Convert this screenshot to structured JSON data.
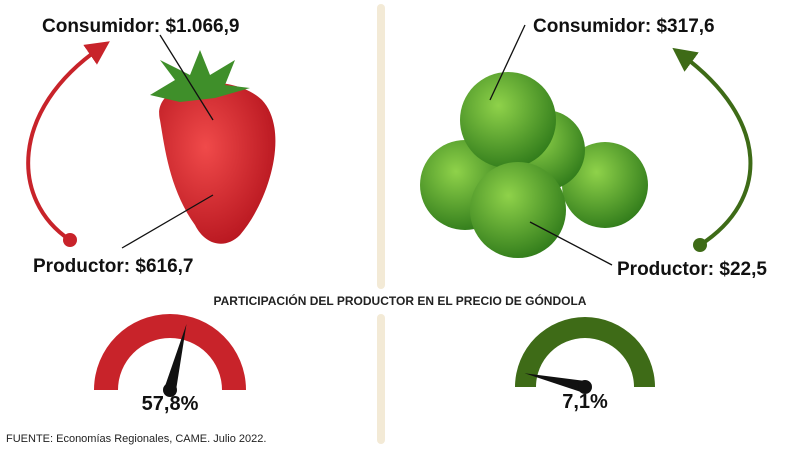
{
  "left": {
    "consumer": "Consumidor: $1.066,9",
    "producer": "Productor: $616,7"
  },
  "right": {
    "consumer": "Consumidor: $317,6",
    "producer": "Productor: $22,5"
  },
  "section_title": "PARTICIPACIÓN DEL PRODUCTOR EN EL PRECIO DE GÓNDOLA",
  "gauges": [
    {
      "value": 57.8,
      "label": "57,8%",
      "scale": [
        0,
        100
      ],
      "color": "#c8232a"
    },
    {
      "value": 7.1,
      "label": "7,1%",
      "scale": [
        0,
        100
      ],
      "color": "#3e6b17"
    }
  ],
  "source": "FUENTE: Economías Regionales, CAME. Julio 2022."
}
